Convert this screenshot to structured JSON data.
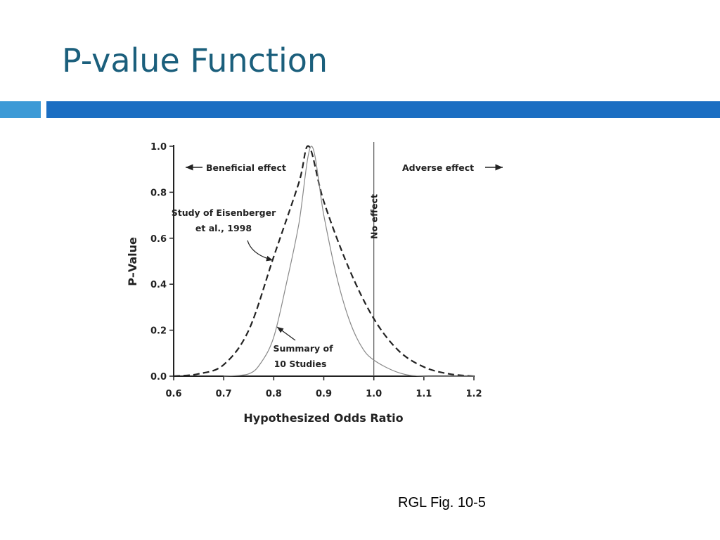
{
  "slide": {
    "title": "P-value Function",
    "caption": "RGL Fig. 10-5"
  },
  "chart_data": {
    "type": "line",
    "xlabel": "Hypothesized Odds Ratio",
    "ylabel": "P–Value",
    "xlim": [
      0.6,
      1.2
    ],
    "ylim": [
      0,
      1
    ],
    "xticks": [
      0.6,
      0.7,
      0.8,
      0.9,
      {
        "value": 1,
        "label": "1.0"
      },
      1.1,
      1.2
    ],
    "yticks": [
      {
        "value": 0,
        "label": "0.0"
      },
      0.2,
      0.4,
      0.6,
      0.8,
      {
        "value": 1,
        "label": "1.0"
      }
    ],
    "reference_line": {
      "x": 1,
      "label": "No effect"
    },
    "annotations": [
      {
        "text": "Beneficial effect"
      },
      {
        "text": "Adverse effect"
      },
      {
        "lines": [
          "Study of Eisenberger",
          "et al., 1998"
        ]
      },
      {
        "lines": [
          "Summary of",
          "10 Studies"
        ]
      }
    ],
    "series": [
      {
        "color": "#222222",
        "dash": true,
        "x": [
          0.6,
          0.65,
          0.7,
          0.75,
          0.8,
          0.85,
          0.87,
          0.9,
          0.95,
          1.0,
          1.05,
          1.1,
          1.15,
          1.2
        ],
        "values": [
          0,
          0.01,
          0.05,
          0.2,
          0.52,
          0.84,
          1.0,
          0.76,
          0.47,
          0.25,
          0.11,
          0.04,
          0.01,
          0
        ]
      },
      {
        "color": "#888888",
        "dash": false,
        "x": [
          0.7,
          0.75,
          0.775,
          0.8,
          0.825,
          0.85,
          0.875,
          0.9,
          0.925,
          0.95,
          0.975,
          1.0,
          1.05,
          1.1,
          1.2
        ],
        "values": [
          0,
          0.01,
          0.06,
          0.17,
          0.4,
          0.66,
          1.0,
          0.7,
          0.44,
          0.25,
          0.13,
          0.07,
          0.015,
          0,
          0
        ]
      }
    ]
  }
}
